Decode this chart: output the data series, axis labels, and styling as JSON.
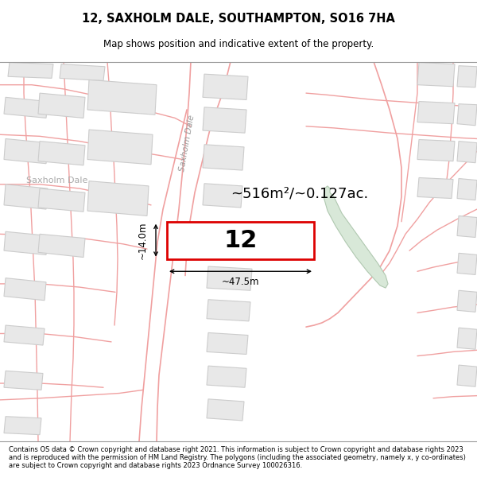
{
  "title": "12, SAXHOLM DALE, SOUTHAMPTON, SO16 7HA",
  "subtitle": "Map shows position and indicative extent of the property.",
  "footer": "Contains OS data © Crown copyright and database right 2021. This information is subject to Crown copyright and database rights 2023 and is reproduced with the permission of HM Land Registry. The polygons (including the associated geometry, namely x, y co-ordinates) are subject to Crown copyright and database rights 2023 Ordnance Survey 100026316.",
  "area_label": "~516m²/~0.127ac.",
  "width_label": "~47.5m",
  "height_label": "~14.0m",
  "plot_number": "12",
  "map_bg": "#ffffff",
  "plot_fill": "#ffffff",
  "plot_border": "#dd0000",
  "street_line_color": "#f0a0a0",
  "block_fill": "#e8e8e8",
  "block_edge": "#cccccc",
  "green_fill": "#d8e8d8",
  "green_edge": "#b0c8b0"
}
